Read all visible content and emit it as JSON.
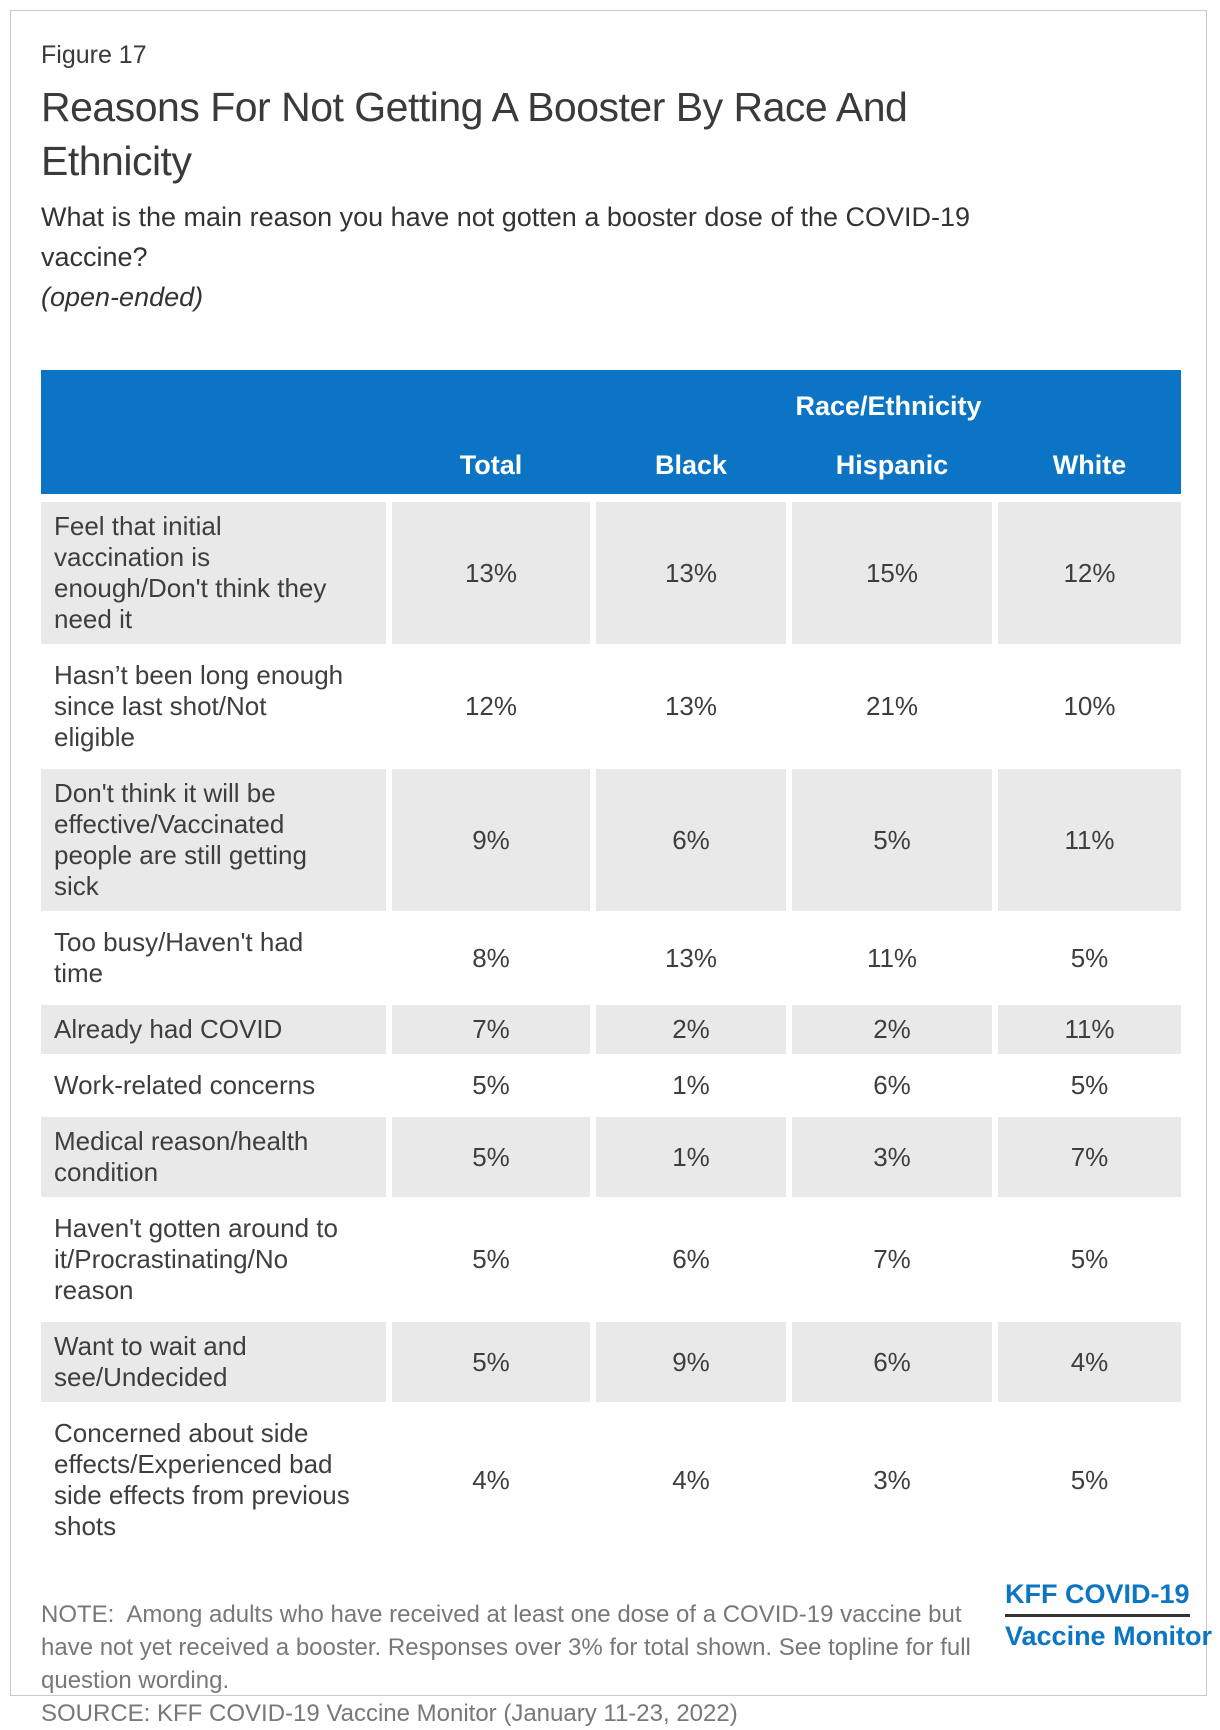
{
  "figure_label": "Figure 17",
  "title": "Reasons For Not Getting A Booster By Race And Ethnicity",
  "subtitle": "What is the main reason you have not gotten a booster dose of the COVID-19 vaccine?",
  "subtitle_note": "(open-ended)",
  "colors": {
    "header_blue": "#0b74c4",
    "stripe_gray": "#e9e9e9",
    "logo_blue": "#0d76c3",
    "body_text": "#3e3e3e",
    "note_gray": "#77787a"
  },
  "table": {
    "group_header": "Race/Ethnicity",
    "columns": [
      "Total",
      "Black",
      "Hispanic",
      "White"
    ],
    "rows": [
      {
        "label": "Feel that initial vaccination is enough/Don't think they need it",
        "values": [
          "13%",
          "13%",
          "15%",
          "12%"
        ]
      },
      {
        "label": "Hasn’t been long enough since last shot/Not eligible",
        "values": [
          "12%",
          "13%",
          "21%",
          "10%"
        ]
      },
      {
        "label": "Don't think it will be effective/Vaccinated people are still getting sick",
        "values": [
          "9%",
          "6%",
          "5%",
          "11%"
        ]
      },
      {
        "label": "Too busy/Haven't had time",
        "values": [
          "8%",
          "13%",
          "11%",
          "5%"
        ]
      },
      {
        "label": "Already had COVID",
        "values": [
          "7%",
          "2%",
          "2%",
          "11%"
        ]
      },
      {
        "label": "Work-related concerns",
        "values": [
          "5%",
          "1%",
          "6%",
          "5%"
        ]
      },
      {
        "label": "Medical reason/health condition",
        "values": [
          "5%",
          "1%",
          "3%",
          "7%"
        ]
      },
      {
        "label": "Haven't gotten around to it/Procrastinating/No reason",
        "values": [
          "5%",
          "6%",
          "7%",
          "5%"
        ]
      },
      {
        "label": "Want to wait and see/Undecided",
        "values": [
          "5%",
          "9%",
          "6%",
          "4%"
        ]
      },
      {
        "label": "Concerned about side effects/Experienced bad side effects from previous shots",
        "values": [
          "4%",
          "4%",
          "3%",
          "5%"
        ]
      }
    ]
  },
  "footer": {
    "note": "NOTE:  Among adults who have received at least one dose of a COVID-19 vaccine but have not yet received a booster. Responses over 3% for total shown. See topline for full question wording.",
    "source": "SOURCE: KFF COVID-19 Vaccine Monitor (January 11-23, 2022)",
    "logo_line1": "KFF COVID-19",
    "logo_line2": "Vaccine Monitor"
  },
  "chart_data": {
    "type": "table",
    "title": "Reasons For Not Getting A Booster By Race And Ethnicity",
    "question": "What is the main reason you have not gotten a booster dose of the COVID-19 vaccine? (open-ended)",
    "group_header": "Race/Ethnicity",
    "unit": "%",
    "categories": [
      "Feel that initial vaccination is enough/Don't think they need it",
      "Hasn’t been long enough since last shot/Not eligible",
      "Don't think it will be effective/Vaccinated people are still getting sick",
      "Too busy/Haven't had time",
      "Already had COVID",
      "Work-related concerns",
      "Medical reason/health condition",
      "Haven't gotten around to it/Procrastinating/No reason",
      "Want to wait and see/Undecided",
      "Concerned about side effects/Experienced bad side effects from previous shots"
    ],
    "series": [
      {
        "name": "Total",
        "values": [
          13,
          12,
          9,
          8,
          7,
          5,
          5,
          5,
          5,
          4
        ]
      },
      {
        "name": "Black",
        "values": [
          13,
          13,
          6,
          13,
          2,
          1,
          1,
          6,
          9,
          4
        ]
      },
      {
        "name": "Hispanic",
        "values": [
          15,
          21,
          5,
          11,
          2,
          6,
          3,
          7,
          6,
          3
        ]
      },
      {
        "name": "White",
        "values": [
          12,
          10,
          11,
          5,
          11,
          5,
          7,
          5,
          4,
          5
        ]
      }
    ],
    "note": "Among adults who have received at least one dose of a COVID-19 vaccine but have not yet received a booster. Responses over 3% for total shown.",
    "source": "KFF COVID-19 Vaccine Monitor (January 11-23, 2022)"
  }
}
